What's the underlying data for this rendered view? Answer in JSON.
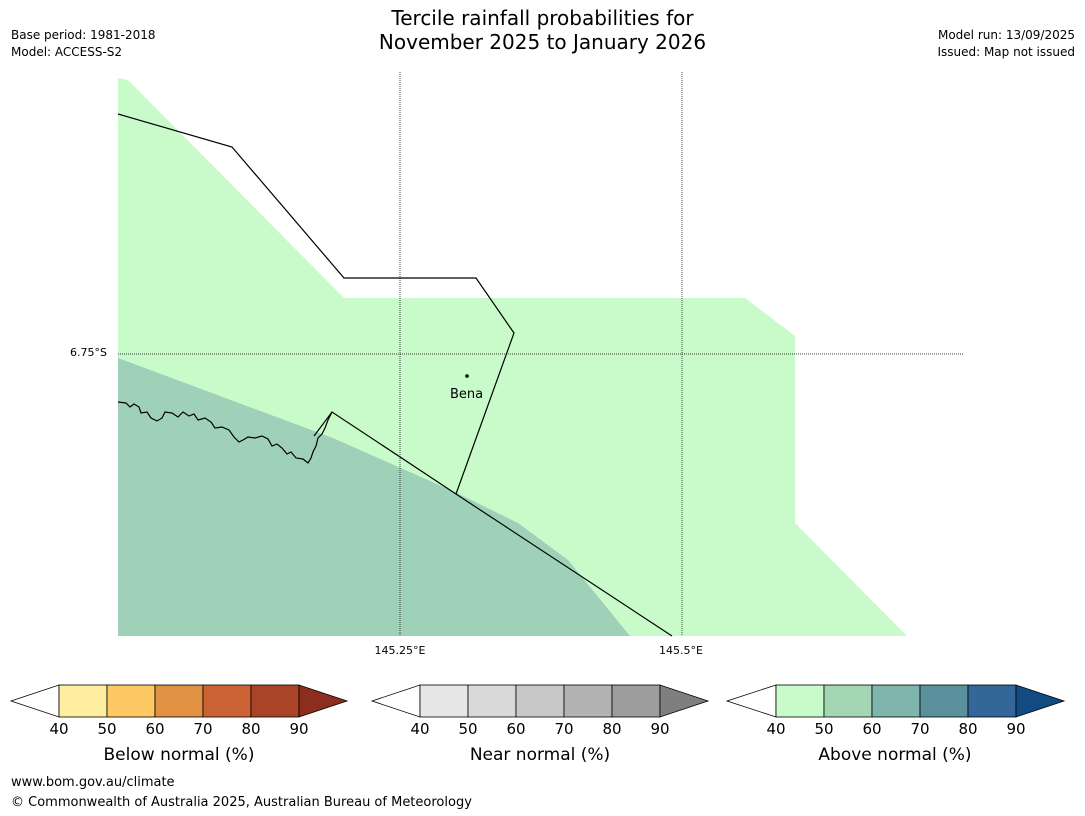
{
  "header": {
    "base_period": "Base period: 1981-2018",
    "model": "Model: ACCESS-S2",
    "model_run": "Model run: 13/09/2025",
    "issued": "Issued: Map not issued",
    "title_line1": "Tercile rainfall probabilities for",
    "title_line2": "November 2025 to January 2026"
  },
  "map": {
    "latitude_label": "6.75°S",
    "longitude_labels": [
      "145.25°E",
      "145.5°E"
    ],
    "place": "Bena",
    "colors": {
      "above_40_50": "#c9fbca",
      "above_50_60": "#9fd1b9",
      "boundary": "#000000"
    }
  },
  "colorbars": [
    {
      "id": "below",
      "title": "Below normal (%)",
      "ticks": [
        "40",
        "50",
        "60",
        "70",
        "80",
        "90"
      ],
      "colors": [
        "#ffeda0",
        "#fec962",
        "#e09142",
        "#cb6334",
        "#aa4429",
        "#8c2d1e"
      ]
    },
    {
      "id": "near",
      "title": "Near normal (%)",
      "ticks": [
        "40",
        "50",
        "60",
        "70",
        "80",
        "90"
      ],
      "colors": [
        "#e6e6e6",
        "#d9d9d9",
        "#c8c8c8",
        "#b3b3b3",
        "#9d9d9d",
        "#7f7f7f"
      ]
    },
    {
      "id": "above",
      "title": "Above normal (%)",
      "ticks": [
        "40",
        "50",
        "60",
        "70",
        "80",
        "90"
      ],
      "colors": [
        "#c9fbca",
        "#a4d6b4",
        "#80b5ad",
        "#5a8f9c",
        "#336699",
        "#124a82"
      ]
    }
  ],
  "footer": {
    "website": "www.bom.gov.au/climate",
    "copyright": "© Commonwealth of Australia 2025, Australian Bureau of Meteorology"
  }
}
